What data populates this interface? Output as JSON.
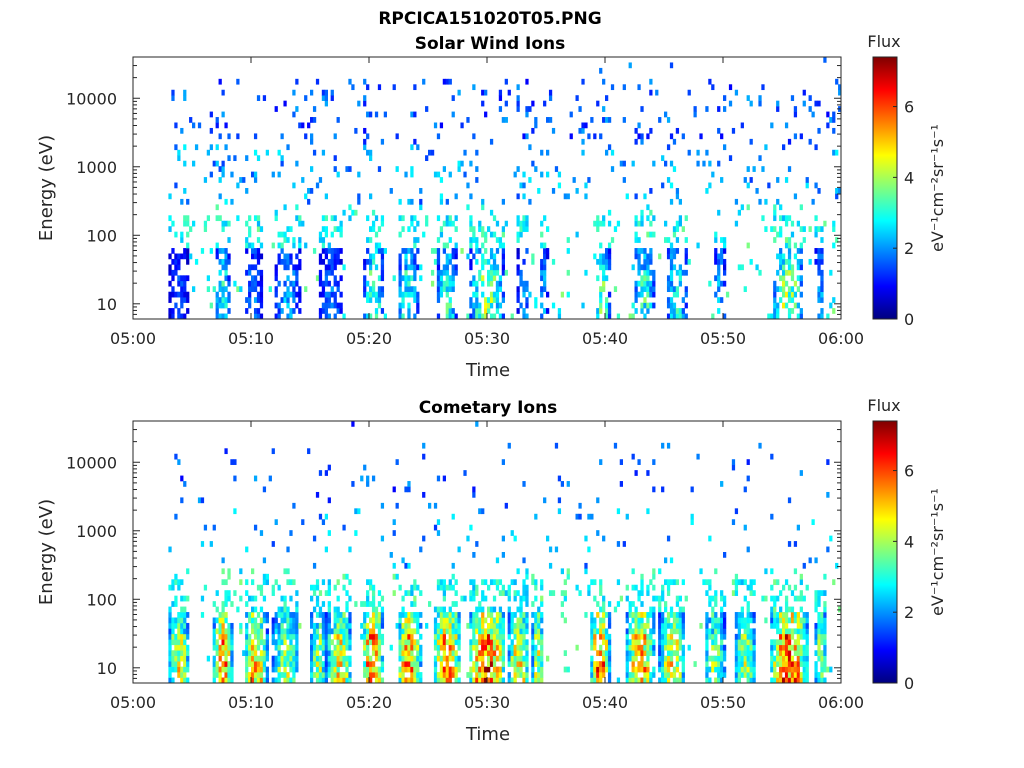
{
  "figure": {
    "filename": "RPCICA151020T05.PNG"
  },
  "colormap": [
    "#00007f",
    "#0000ff",
    "#007fff",
    "#00ffff",
    "#7fff7f",
    "#ffff00",
    "#ff7f00",
    "#ff0000",
    "#7f0000"
  ],
  "chart_data": [
    {
      "type": "heatmap",
      "title": "Solar Wind Ions",
      "xlabel": "Time",
      "ylabel": "Energy (eV)",
      "x_ticks": [
        "05:00",
        "05:10",
        "05:20",
        "05:30",
        "05:40",
        "05:50",
        "06:00"
      ],
      "x_range": [
        "05:00",
        "06:00"
      ],
      "y_scale": "log",
      "y_ticks": [
        "10",
        "100",
        "1000",
        "10000"
      ],
      "y_range": [
        6,
        40000
      ],
      "colorbar": {
        "title": "Flux",
        "unit": "eV⁻¹cm⁻²sr⁻¹s⁻¹",
        "ticks": [
          "0",
          "2",
          "4",
          "6"
        ],
        "range": [
          0,
          7.4
        ]
      },
      "activity_bursts_minutes": [
        {
          "start": 3.1,
          "end": 4.7,
          "peak": 1.8
        },
        {
          "start": 7.0,
          "end": 8.2,
          "peak": 3.6
        },
        {
          "start": 9.4,
          "end": 11.0,
          "peak": 2.2
        },
        {
          "start": 12.0,
          "end": 14.2,
          "peak": 2.6
        },
        {
          "start": 15.8,
          "end": 17.8,
          "peak": 2.2
        },
        {
          "start": 19.6,
          "end": 21.2,
          "peak": 4.2
        },
        {
          "start": 22.4,
          "end": 24.2,
          "peak": 3.6
        },
        {
          "start": 25.8,
          "end": 27.4,
          "peak": 3.8
        },
        {
          "start": 28.6,
          "end": 31.4,
          "peak": 4.6
        },
        {
          "start": 32.6,
          "end": 33.6,
          "peak": 2.6
        },
        {
          "start": 34.4,
          "end": 35.2,
          "peak": 2.6
        },
        {
          "start": 39.2,
          "end": 40.4,
          "peak": 4.4
        },
        {
          "start": 42.4,
          "end": 44.2,
          "peak": 3.8
        },
        {
          "start": 45.2,
          "end": 47.0,
          "peak": 3.4
        },
        {
          "start": 49.2,
          "end": 50.2,
          "peak": 2.8
        },
        {
          "start": 54.2,
          "end": 56.8,
          "peak": 4.8
        },
        {
          "start": 57.8,
          "end": 58.6,
          "peak": 2.8
        }
      ]
    },
    {
      "type": "heatmap",
      "title": "Cometary Ions",
      "xlabel": "Time",
      "ylabel": "Energy (eV)",
      "x_ticks": [
        "05:00",
        "05:10",
        "05:20",
        "05:30",
        "05:40",
        "05:50",
        "06:00"
      ],
      "x_range": [
        "05:00",
        "06:00"
      ],
      "y_scale": "log",
      "y_ticks": [
        "10",
        "100",
        "1000",
        "10000"
      ],
      "y_range": [
        6,
        40000
      ],
      "colorbar": {
        "title": "Flux",
        "unit": "eV⁻¹cm⁻²sr⁻¹s⁻¹",
        "ticks": [
          "0",
          "2",
          "4",
          "6"
        ],
        "range": [
          0,
          7.4
        ]
      },
      "activity_bursts_minutes": [
        {
          "start": 3.0,
          "end": 4.8,
          "peak": 5.4
        },
        {
          "start": 6.8,
          "end": 8.4,
          "peak": 7.0
        },
        {
          "start": 9.4,
          "end": 11.4,
          "peak": 6.2
        },
        {
          "start": 11.8,
          "end": 14.0,
          "peak": 4.8
        },
        {
          "start": 15.0,
          "end": 16.4,
          "peak": 4.8
        },
        {
          "start": 16.4,
          "end": 18.6,
          "peak": 5.6
        },
        {
          "start": 19.4,
          "end": 21.2,
          "peak": 7.0
        },
        {
          "start": 22.4,
          "end": 24.4,
          "peak": 6.8
        },
        {
          "start": 25.4,
          "end": 27.8,
          "peak": 6.8
        },
        {
          "start": 28.4,
          "end": 31.6,
          "peak": 7.2
        },
        {
          "start": 31.8,
          "end": 33.6,
          "peak": 5.8
        },
        {
          "start": 33.8,
          "end": 34.8,
          "peak": 5.2
        },
        {
          "start": 38.8,
          "end": 40.4,
          "peak": 7.0
        },
        {
          "start": 41.8,
          "end": 44.2,
          "peak": 6.4
        },
        {
          "start": 44.6,
          "end": 46.8,
          "peak": 5.6
        },
        {
          "start": 48.4,
          "end": 50.2,
          "peak": 4.8
        },
        {
          "start": 51.0,
          "end": 52.8,
          "peak": 4.8
        },
        {
          "start": 54.0,
          "end": 57.2,
          "peak": 7.2
        },
        {
          "start": 57.8,
          "end": 58.8,
          "peak": 4.8
        }
      ]
    }
  ]
}
